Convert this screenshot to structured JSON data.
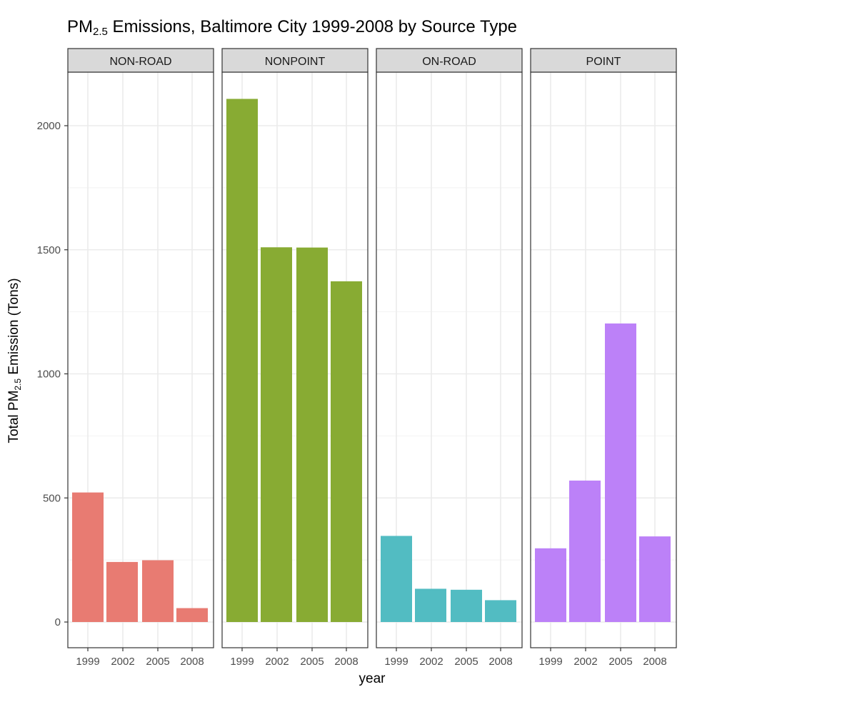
{
  "chart_data": {
    "type": "bar",
    "faceted": true,
    "title": {
      "prefix": "PM",
      "subscript": "2.5",
      "suffix": " Emissions, Baltimore City 1999-2008 by Source Type"
    },
    "xlabel": "year",
    "ylabel": {
      "prefix": "Total PM",
      "subscript": "2.5",
      "suffix": " Emission (Tons)"
    },
    "categories": [
      "1999",
      "2002",
      "2005",
      "2008"
    ],
    "ylim": [
      0,
      2200
    ],
    "yticks": [
      0,
      500,
      1000,
      1500,
      2000
    ],
    "grid": true,
    "legend": "none",
    "series": [
      {
        "name": "NON-ROAD",
        "color": "#e87b72",
        "values": [
          522,
          242,
          249,
          56
        ]
      },
      {
        "name": "NONPOINT",
        "color": "#88ab33",
        "values": [
          2108,
          1510,
          1509,
          1373
        ]
      },
      {
        "name": "ON-ROAD",
        "color": "#52bcc2",
        "values": [
          347,
          134,
          130,
          88
        ]
      },
      {
        "name": "POINT",
        "color": "#bc81f8",
        "values": [
          297,
          570,
          1203,
          345
        ]
      }
    ]
  }
}
